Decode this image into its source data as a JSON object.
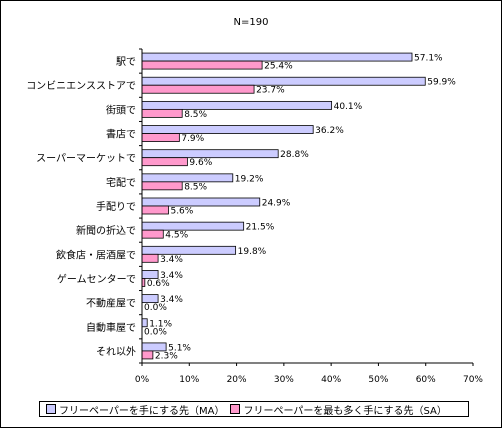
{
  "chart_data": {
    "type": "bar",
    "orientation": "horizontal",
    "title": "N=190",
    "categories": [
      "駅で",
      "コンビニエンスストアで",
      "街頭で",
      "書店で",
      "スーパーマーケットで",
      "宅配で",
      "手配りで",
      "新聞の折込で",
      "飲食店・居酒屋で",
      "ゲームセンターで",
      "不動産屋で",
      "自動車屋で",
      "それ以外"
    ],
    "series": [
      {
        "name": "フリーペーパーを手にする先（MA）",
        "color": "#ccccff",
        "values": [
          57.1,
          59.9,
          40.1,
          36.2,
          28.8,
          19.2,
          24.9,
          21.5,
          19.8,
          3.4,
          3.4,
          1.1,
          5.1
        ]
      },
      {
        "name": "フリーペーパーを最も多く手にする先（SA）",
        "color": "#ff99cc",
        "values": [
          25.4,
          23.7,
          8.5,
          7.9,
          9.6,
          8.5,
          5.6,
          4.5,
          3.4,
          0.6,
          0.0,
          0.0,
          2.3
        ]
      }
    ],
    "data_labels": [
      [
        "57.1%",
        "59.9%",
        "40.1%",
        "36.2%",
        "28.8%",
        "19.2%",
        "24.9%",
        "21.5%",
        "19.8%",
        "3.4%",
        "3.4%",
        "1.1%",
        "5.1%"
      ],
      [
        "25.4%",
        "23.7%",
        "8.5%",
        "7.9%",
        "9.6%",
        "8.5%",
        "5.6%",
        "4.5%",
        "3.4%",
        "0.6%",
        "0.0%",
        "0.0%",
        "2.3%"
      ]
    ],
    "xlim": [
      0,
      70
    ],
    "xticks": [
      "0%",
      "10%",
      "20%",
      "30%",
      "40%",
      "50%",
      "60%",
      "70%"
    ],
    "xlabel": "",
    "ylabel": "",
    "grid": false,
    "legend_position": "bottom"
  }
}
